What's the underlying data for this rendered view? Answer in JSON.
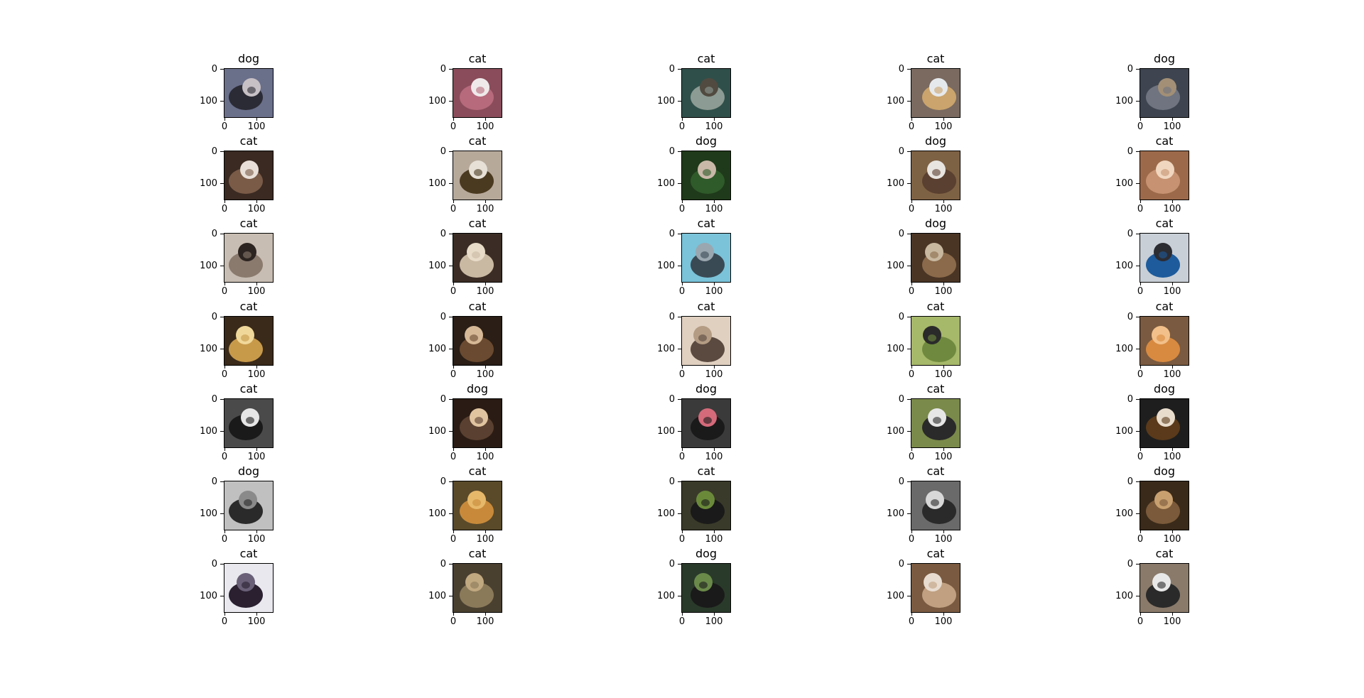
{
  "grid": {
    "rows": 7,
    "cols": 5,
    "labels": [
      [
        "dog",
        "cat",
        "cat",
        "cat",
        "dog"
      ],
      [
        "cat",
        "cat",
        "dog",
        "dog",
        "cat"
      ],
      [
        "cat",
        "cat",
        "cat",
        "dog",
        "cat"
      ],
      [
        "cat",
        "cat",
        "cat",
        "cat",
        "cat"
      ],
      [
        "cat",
        "dog",
        "dog",
        "cat",
        "dog"
      ],
      [
        "dog",
        "cat",
        "cat",
        "cat",
        "dog"
      ],
      [
        "cat",
        "cat",
        "dog",
        "cat",
        "cat"
      ]
    ],
    "x_ticks": [
      "0",
      "100"
    ],
    "y_ticks": [
      "0",
      "100"
    ],
    "thumb_colors": [
      [
        [
          "#2b2b35",
          "#c7c0c5",
          "#6a6f8a"
        ],
        [
          "#b66a7c",
          "#efe9ea",
          "#8a4c5a"
        ],
        [
          "#8c9b93",
          "#504a40",
          "#2f4f4a"
        ],
        [
          "#caa46c",
          "#e6e9ec",
          "#7a6a60"
        ],
        [
          "#6f7480",
          "#a28f76",
          "#3e4550"
        ]
      ],
      [
        [
          "#7a5b48",
          "#e8dfd8",
          "#3a2a22"
        ],
        [
          "#4a3a20",
          "#e6e0d6",
          "#b7a99a"
        ],
        [
          "#2f5a2a",
          "#c9b8a8",
          "#1f3a1a"
        ],
        [
          "#5a4030",
          "#e8e4e0",
          "#7e6244"
        ],
        [
          "#c69272",
          "#f1d6bf",
          "#9c6a4a"
        ]
      ],
      [
        [
          "#8a7a6e",
          "#2c2420",
          "#c8bdb2"
        ],
        [
          "#c9b9a3",
          "#e8dcc8",
          "#3b2d25"
        ],
        [
          "#3a4a55",
          "#9aa7b0",
          "#7ac3d9"
        ],
        [
          "#8a6a4a",
          "#c9b8a0",
          "#4a3525"
        ],
        [
          "#1d5b9c",
          "#2c2c33",
          "#c8cfd6"
        ]
      ],
      [
        [
          "#c79a4a",
          "#f0d89a",
          "#3a2a1a"
        ],
        [
          "#6a4a30",
          "#d6b896",
          "#2a1e16"
        ],
        [
          "#5a4a40",
          "#b49c84",
          "#e0d0c0"
        ],
        [
          "#6f8a3e",
          "#2a2a2a",
          "#a6b86a"
        ],
        [
          "#d88a40",
          "#f2c08a",
          "#7a5a40"
        ]
      ],
      [
        [
          "#1a1a1a",
          "#e6e6e6",
          "#4a4a4a"
        ],
        [
          "#5a4030",
          "#e0c4a0",
          "#2a1c14"
        ],
        [
          "#1a1a1a",
          "#d46a7a",
          "#3a3a3a"
        ],
        [
          "#2a2a2a",
          "#e6e6e6",
          "#7a8a4a"
        ],
        [
          "#5a3a1a",
          "#e8dccc",
          "#1e1e1e"
        ]
      ],
      [
        [
          "#2a2a2a",
          "#8a8a8a",
          "#c0c0c0"
        ],
        [
          "#c88a3a",
          "#e6b86a",
          "#5a4a2a"
        ],
        [
          "#1a1a1a",
          "#6a8a3a",
          "#3a3a2a"
        ],
        [
          "#2a2a2a",
          "#d8d8d8",
          "#6a6a6a"
        ],
        [
          "#7a5a3a",
          "#c8a070",
          "#3a2a1a"
        ]
      ],
      [
        [
          "#2a2030",
          "#6a6078",
          "#e8e8ee"
        ],
        [
          "#8a7a5a",
          "#c0a880",
          "#4a4030"
        ],
        [
          "#1a1a1a",
          "#6a8a4a",
          "#2a3a2a"
        ],
        [
          "#c0a080",
          "#e8dcd0",
          "#7a5a40"
        ],
        [
          "#2a2a2a",
          "#e8e8e8",
          "#8a7a6a"
        ]
      ]
    ]
  }
}
